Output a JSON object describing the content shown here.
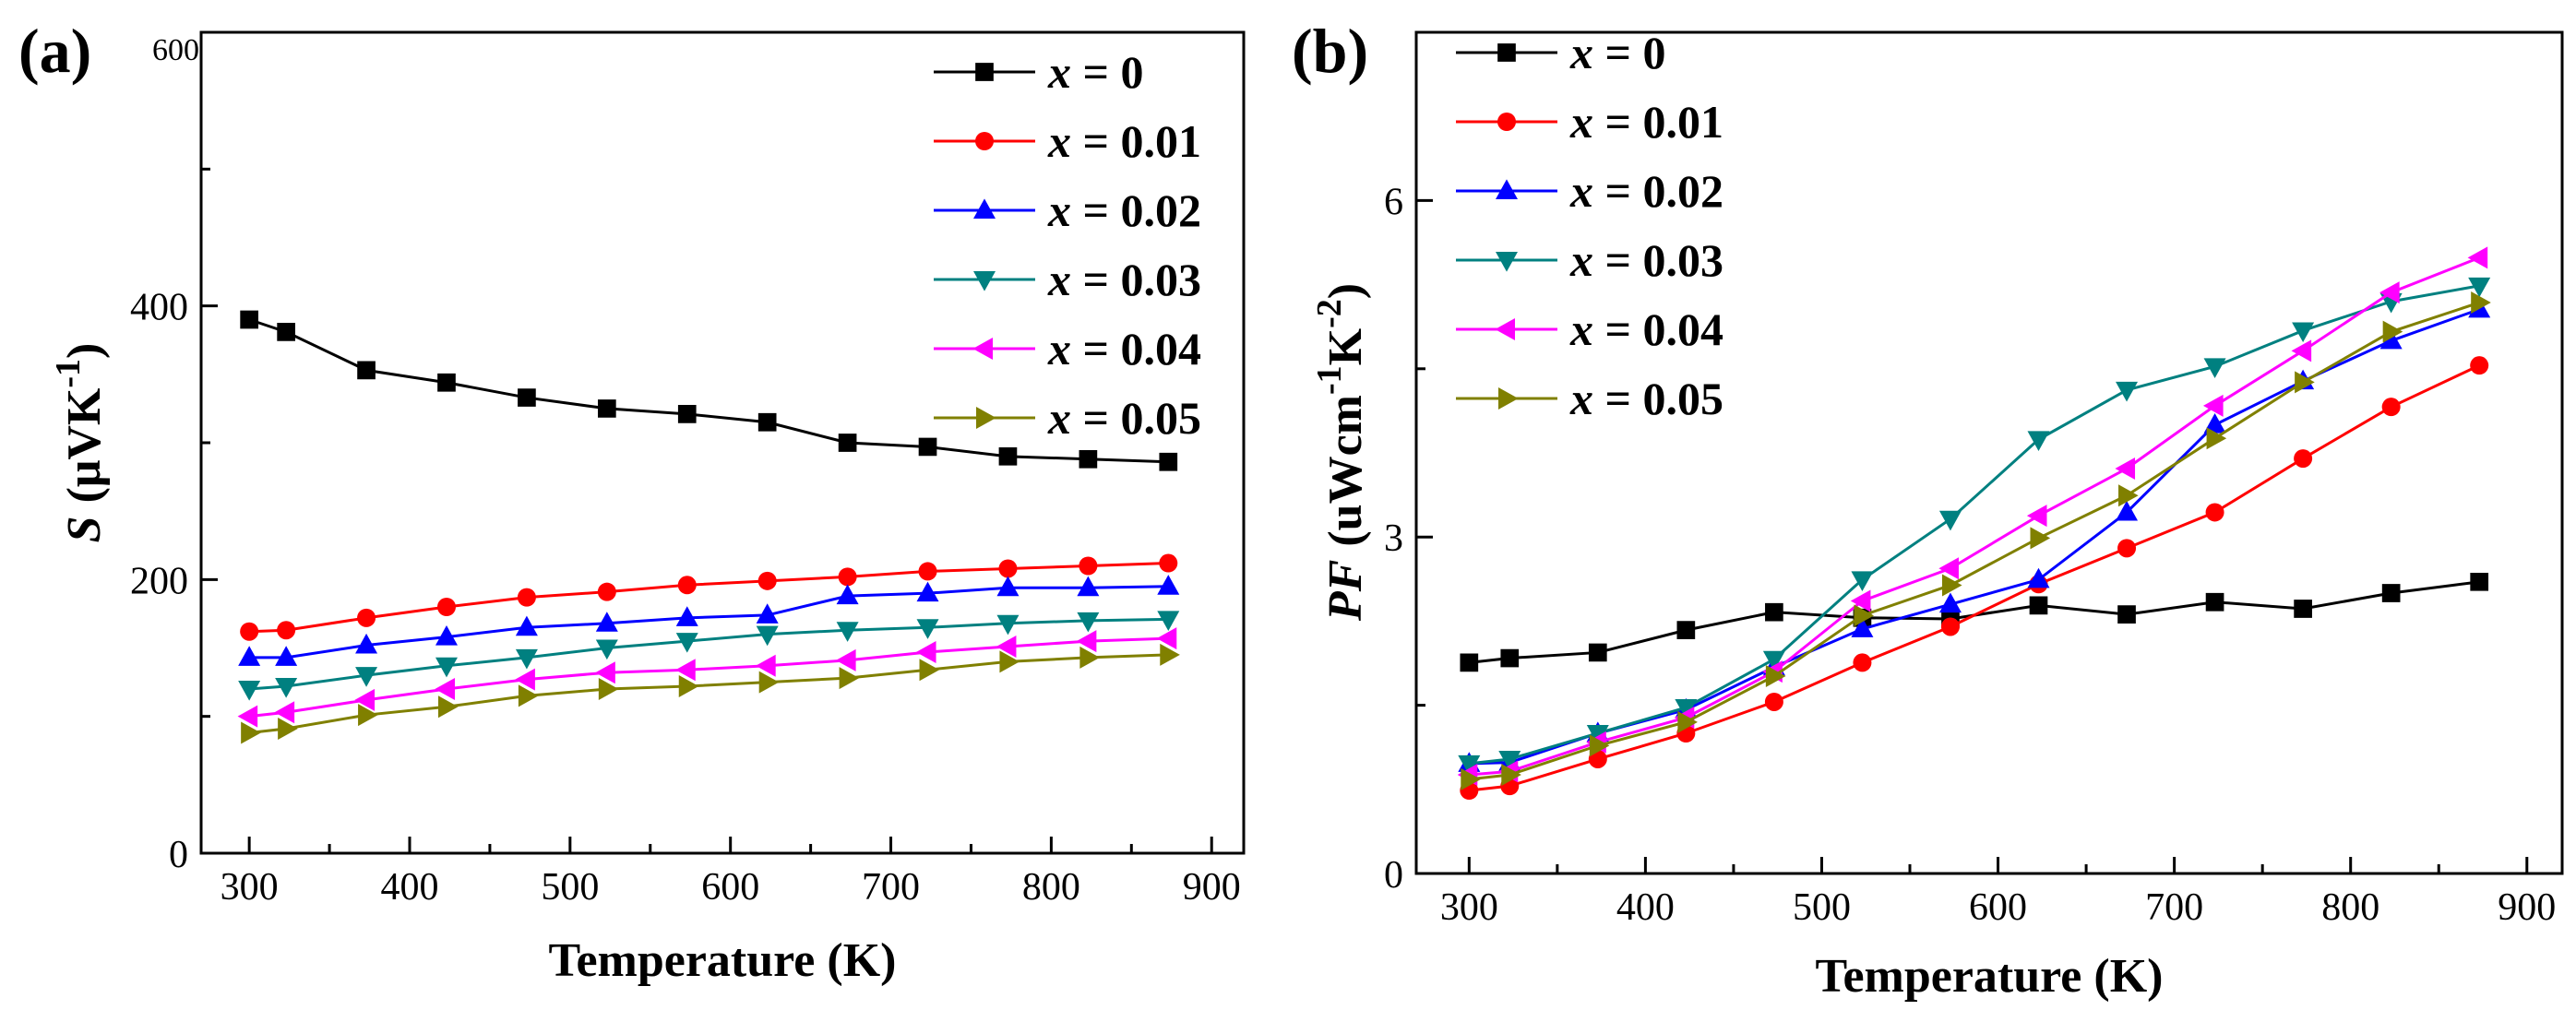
{
  "chart_data": [
    {
      "panel_label": "(a)",
      "type": "line",
      "xlabel": "Temperature (K)",
      "ylabel_main": "S",
      "ylabel_unit": "(μVK",
      "ylabel_sup": "-1",
      "ylabel_close": ")",
      "xlim": [
        270,
        920
      ],
      "ylim": [
        0,
        600
      ],
      "xticks": [
        300,
        400,
        500,
        600,
        700,
        800,
        900
      ],
      "yticks": [
        0,
        200,
        400,
        600
      ],
      "xtick_labels": [
        "300",
        "400",
        "500",
        "600",
        "700",
        "800",
        "900"
      ],
      "ytick_labels": [
        "0",
        "200",
        "400",
        "600"
      ],
      "legend_position": "top-right",
      "x": [
        300,
        323,
        373,
        423,
        473,
        523,
        573,
        623,
        673,
        723,
        773,
        823,
        873
      ],
      "series": [
        {
          "name": "x = 0",
          "var": "x",
          "eq": " = 0",
          "color": "#000000",
          "marker": "square",
          "values": [
            390,
            381,
            353,
            344,
            333,
            325,
            321,
            315,
            300,
            297,
            290,
            288,
            286
          ]
        },
        {
          "name": "x = 0.01",
          "var": "x",
          "eq": " = 0.01",
          "color": "#ff0000",
          "marker": "circle",
          "values": [
            162,
            163,
            172,
            180,
            187,
            191,
            196,
            199,
            202,
            206,
            208,
            210,
            212
          ]
        },
        {
          "name": "x = 0.02",
          "var": "x",
          "eq": " = 0.02",
          "color": "#0000ff",
          "marker": "triangle-up",
          "values": [
            143,
            143,
            152,
            158,
            165,
            168,
            172,
            174,
            188,
            190,
            194,
            194,
            195
          ]
        },
        {
          "name": "x = 0.03",
          "var": "x",
          "eq": " = 0.03",
          "color": "#008080",
          "marker": "triangle-down",
          "values": [
            120,
            122,
            130,
            137,
            143,
            150,
            155,
            160,
            163,
            165,
            168,
            170,
            171
          ]
        },
        {
          "name": "x = 0.04",
          "var": "x",
          "eq": " = 0.04",
          "color": "#ff00ff",
          "marker": "triangle-left",
          "values": [
            100,
            103,
            112,
            120,
            127,
            132,
            134,
            137,
            141,
            147,
            151,
            155,
            157
          ]
        },
        {
          "name": "x = 0.05",
          "var": "x",
          "eq": " = 0.05",
          "color": "#808000",
          "marker": "triangle-right",
          "values": [
            88,
            91,
            101,
            107,
            115,
            120,
            122,
            125,
            128,
            134,
            140,
            143,
            145
          ]
        }
      ]
    },
    {
      "panel_label": "(b)",
      "type": "line",
      "xlabel": "Temperature (K)",
      "ylabel_main": "PF",
      "ylabel_unit": "(uWcm",
      "ylabel_sup1": "-1",
      "ylabel_mid": "K",
      "ylabel_sup2": "-2",
      "ylabel_close": ")",
      "xlim": [
        270,
        920
      ],
      "ylim": [
        0,
        7.5
      ],
      "xticks": [
        300,
        400,
        500,
        600,
        700,
        800,
        900
      ],
      "yticks": [
        0,
        3,
        6
      ],
      "xtick_labels": [
        "300",
        "400",
        "500",
        "600",
        "700",
        "800",
        "900"
      ],
      "ytick_labels": [
        "0",
        "3",
        "6"
      ],
      "legend_position": "top-left",
      "x": [
        300,
        323,
        373,
        423,
        473,
        523,
        573,
        623,
        673,
        723,
        773,
        823,
        873
      ],
      "series": [
        {
          "name": "x = 0",
          "var": "x",
          "eq": " = 0",
          "color": "#000000",
          "marker": "square",
          "values": [
            1.88,
            1.92,
            1.97,
            2.17,
            2.33,
            2.28,
            2.27,
            2.39,
            2.31,
            2.42,
            2.36,
            2.5,
            2.6
          ]
        },
        {
          "name": "x = 0.01",
          "var": "x",
          "eq": " = 0.01",
          "color": "#ff0000",
          "marker": "circle",
          "values": [
            0.74,
            0.78,
            1.02,
            1.25,
            1.53,
            1.88,
            2.2,
            2.58,
            2.9,
            3.22,
            3.7,
            4.16,
            4.53
          ]
        },
        {
          "name": "x = 0.02",
          "var": "x",
          "eq": " = 0.02",
          "color": "#0000ff",
          "marker": "triangle-up",
          "values": [
            0.98,
            0.99,
            1.25,
            1.46,
            1.84,
            2.18,
            2.4,
            2.62,
            3.22,
            4.0,
            4.39,
            4.75,
            5.03
          ]
        },
        {
          "name": "x = 0.03",
          "var": "x",
          "eq": " = 0.03",
          "color": "#008080",
          "marker": "triangle-down",
          "values": [
            0.98,
            1.02,
            1.25,
            1.48,
            1.91,
            2.62,
            3.16,
            3.87,
            4.31,
            4.52,
            4.84,
            5.1,
            5.24
          ]
        },
        {
          "name": "x = 0.04",
          "var": "x",
          "eq": " = 0.04",
          "color": "#ff00ff",
          "marker": "triangle-left",
          "values": [
            0.88,
            0.91,
            1.17,
            1.39,
            1.8,
            2.43,
            2.72,
            3.19,
            3.61,
            4.17,
            4.66,
            5.18,
            5.49
          ]
        },
        {
          "name": "x = 0.05",
          "var": "x",
          "eq": " = 0.05",
          "color": "#808000",
          "marker": "triangle-right",
          "values": [
            0.84,
            0.88,
            1.14,
            1.35,
            1.76,
            2.3,
            2.57,
            2.99,
            3.37,
            3.88,
            4.38,
            4.83,
            5.09
          ]
        }
      ]
    }
  ]
}
